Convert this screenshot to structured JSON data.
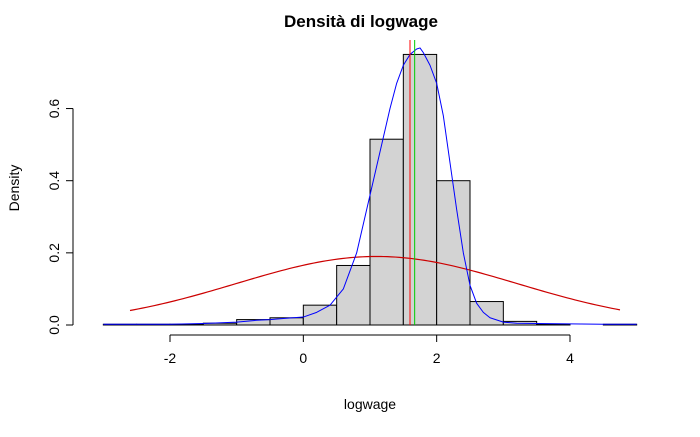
{
  "chart_data": {
    "type": "bar",
    "title": "Densità di logwage",
    "xlabel": "logwage",
    "ylabel": "Density",
    "xlim": [
      -3.05,
      5.05
    ],
    "ylim": [
      0,
      0.79
    ],
    "x_ticks": [
      -2,
      0,
      2,
      4
    ],
    "x_tick_labels": [
      "-2",
      "0",
      "2",
      "4"
    ],
    "y_ticks": [
      0.0,
      0.2,
      0.4,
      0.6
    ],
    "y_tick_labels": [
      "0.0",
      "0.2",
      "0.4",
      "0.6"
    ],
    "grid": false,
    "histogram": {
      "bin_width": 0.5,
      "bins": [
        {
          "x0": -3.0,
          "x1": -2.5,
          "density": 0.002
        },
        {
          "x0": -2.5,
          "x1": -2.0,
          "density": 0.002
        },
        {
          "x0": -2.0,
          "x1": -1.5,
          "density": 0.002
        },
        {
          "x0": -1.5,
          "x1": -1.0,
          "density": 0.005
        },
        {
          "x0": -1.0,
          "x1": -0.5,
          "density": 0.015
        },
        {
          "x0": -0.5,
          "x1": 0.0,
          "density": 0.02
        },
        {
          "x0": 0.0,
          "x1": 0.5,
          "density": 0.055
        },
        {
          "x0": 0.5,
          "x1": 1.0,
          "density": 0.165
        },
        {
          "x0": 1.0,
          "x1": 1.5,
          "density": 0.515
        },
        {
          "x0": 1.5,
          "x1": 2.0,
          "density": 0.75
        },
        {
          "x0": 2.0,
          "x1": 2.5,
          "density": 0.4
        },
        {
          "x0": 2.5,
          "x1": 3.0,
          "density": 0.065
        },
        {
          "x0": 3.0,
          "x1": 3.5,
          "density": 0.01
        },
        {
          "x0": 3.5,
          "x1": 4.0,
          "density": 0.002
        },
        {
          "x0": 4.0,
          "x1": 4.5,
          "density": 0.0
        },
        {
          "x0": 4.5,
          "x1": 5.0,
          "density": 0.002
        }
      ]
    },
    "kernel_density": {
      "color": "#0000ff",
      "x": [
        -3.0,
        -2.5,
        -2.0,
        -1.5,
        -1.0,
        -0.7,
        -0.5,
        -0.3,
        0.0,
        0.2,
        0.4,
        0.6,
        0.8,
        1.0,
        1.1,
        1.2,
        1.3,
        1.4,
        1.5,
        1.6,
        1.7,
        1.75,
        1.8,
        1.9,
        2.0,
        2.1,
        2.2,
        2.3,
        2.4,
        2.5,
        2.6,
        2.7,
        2.8,
        3.0,
        3.2,
        3.5,
        4.0,
        4.5,
        5.0
      ],
      "y": [
        0.002,
        0.002,
        0.002,
        0.004,
        0.008,
        0.013,
        0.015,
        0.018,
        0.022,
        0.035,
        0.055,
        0.1,
        0.2,
        0.36,
        0.44,
        0.52,
        0.6,
        0.67,
        0.72,
        0.75,
        0.765,
        0.768,
        0.755,
        0.72,
        0.67,
        0.58,
        0.45,
        0.32,
        0.2,
        0.11,
        0.06,
        0.035,
        0.02,
        0.008,
        0.005,
        0.004,
        0.003,
        0.002,
        0.002
      ]
    },
    "normal_density": {
      "color": "#cc0000",
      "mean": 1.1,
      "sd": 2.1,
      "x_range": [
        -2.6,
        4.75
      ]
    },
    "vertical_lines": [
      {
        "x": 1.6,
        "color": "#ff0000"
      },
      {
        "x": 1.67,
        "color": "#00cc00"
      }
    ]
  }
}
